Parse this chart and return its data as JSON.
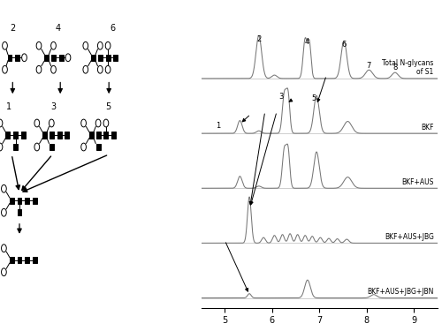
{
  "x_range": [
    4.5,
    9.5
  ],
  "trace_color": "#777777",
  "bg_color": "#ffffff",
  "labels": [
    "Total N-glycans\nof S1",
    "BKF",
    "BKF+AUS",
    "BKF+AUS+JBG",
    "BKF+AUS+JBG+JBN"
  ],
  "trace_offsets": [
    4.0,
    3.0,
    2.0,
    1.0,
    0.0
  ],
  "trace_scale": 0.78
}
